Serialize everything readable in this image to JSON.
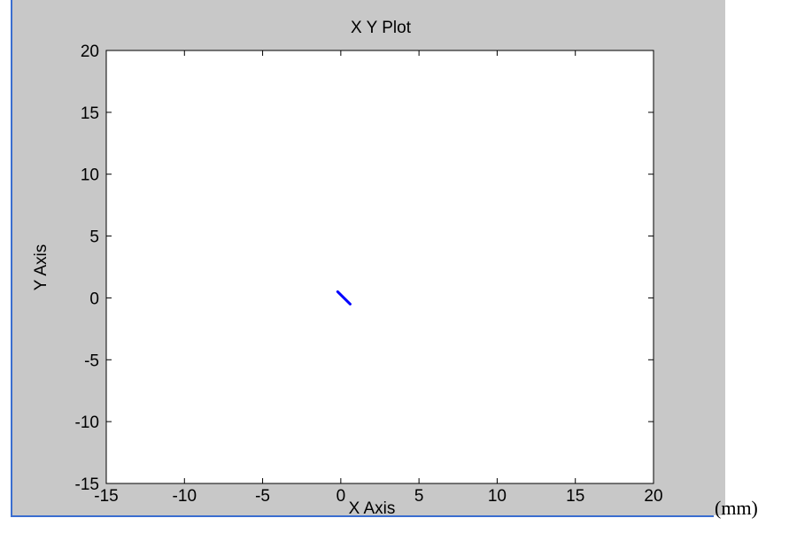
{
  "window": {
    "background_color": "#c8c8c8",
    "border_color": "#3a6ed0"
  },
  "unit_label": "(mm)",
  "chart_data": {
    "type": "line",
    "title": "X Y Plot",
    "xlabel": "X Axis",
    "ylabel": "Y Axis",
    "xlim": [
      -15,
      20
    ],
    "ylim": [
      -15,
      20
    ],
    "xticks": [
      -15,
      -10,
      -5,
      0,
      5,
      10,
      15,
      20
    ],
    "yticks": [
      -15,
      -10,
      -5,
      0,
      5,
      10,
      15,
      20
    ],
    "grid": false,
    "series": [
      {
        "color": "#0000ff",
        "x": [
          -0.2,
          0.6
        ],
        "y": [
          0.5,
          -0.5
        ]
      }
    ]
  }
}
